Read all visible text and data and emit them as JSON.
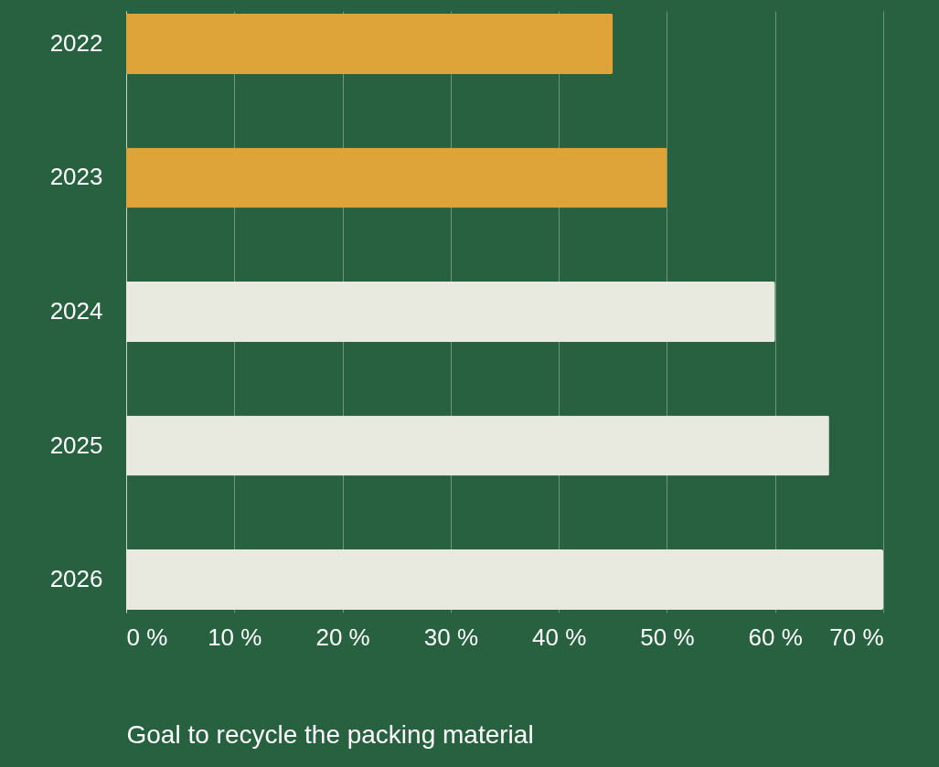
{
  "chart_data": {
    "type": "bar",
    "orientation": "horizontal",
    "xlabel": "Goal to recycle the packing material",
    "categories": [
      "2022",
      "2023",
      "2024",
      "2025",
      "2026"
    ],
    "values": [
      45,
      50,
      60,
      65,
      70
    ],
    "colors": [
      "#dea43a",
      "#dea43a",
      "#e8eadf",
      "#e8eadf",
      "#e8eadf"
    ],
    "xlim": [
      0,
      70
    ],
    "xticks": [
      {
        "value": 0,
        "label": "0 %"
      },
      {
        "value": 10,
        "label": "10 %"
      },
      {
        "value": 20,
        "label": "20 %"
      },
      {
        "value": 30,
        "label": "30 %"
      },
      {
        "value": 40,
        "label": "40 %"
      },
      {
        "value": 50,
        "label": "50 %"
      },
      {
        "value": 60,
        "label": "60 %"
      },
      {
        "value": 70,
        "label": "70 %"
      }
    ],
    "grid": "x"
  }
}
